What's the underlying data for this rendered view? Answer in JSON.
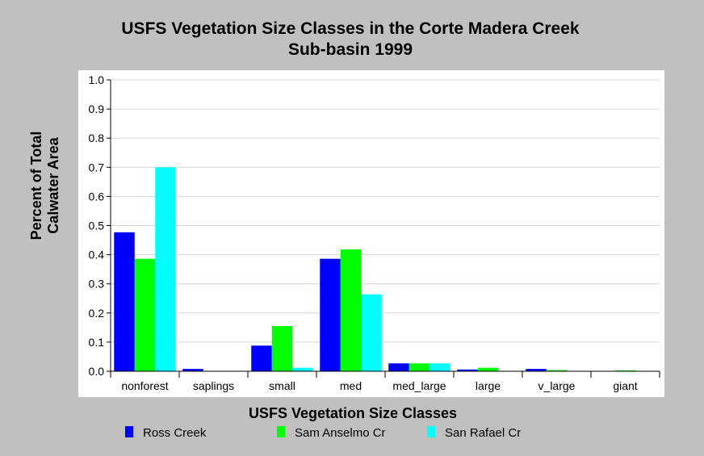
{
  "chart_data": {
    "type": "bar",
    "title_lines": [
      "USFS Vegetation Size Classes in the Corte Madera Creek",
      "Sub-basin 1999"
    ],
    "xlabel": "USFS Vegetation Size Classes",
    "ylabel_lines": [
      "Percent of Total",
      "Calwater Area"
    ],
    "ylim": [
      0,
      1.0
    ],
    "yticks": [
      "0.0",
      "0.1",
      "0.2",
      "0.3",
      "0.4",
      "0.5",
      "0.6",
      "0.7",
      "0.8",
      "0.9",
      "1.0"
    ],
    "grid": true,
    "legend_position": "bottom",
    "categories": [
      "nonforest",
      "saplings",
      "small",
      "med",
      "med_large",
      "large",
      "v_large",
      "giant"
    ],
    "series": [
      {
        "name": "Ross Creek",
        "color": "#0000ff",
        "values": [
          0.477,
          0.008,
          0.088,
          0.386,
          0.027,
          0.006,
          0.008,
          0.0
        ]
      },
      {
        "name": "Sam Anselmo Cr",
        "color": "#00ff00",
        "values": [
          0.386,
          0.0,
          0.155,
          0.418,
          0.027,
          0.012,
          0.004,
          0.003
        ]
      },
      {
        "name": "San Rafael Cr",
        "color": "#00ffff",
        "values": [
          0.7,
          0.0,
          0.012,
          0.264,
          0.027,
          0.0,
          0.0,
          0.0
        ]
      }
    ]
  }
}
